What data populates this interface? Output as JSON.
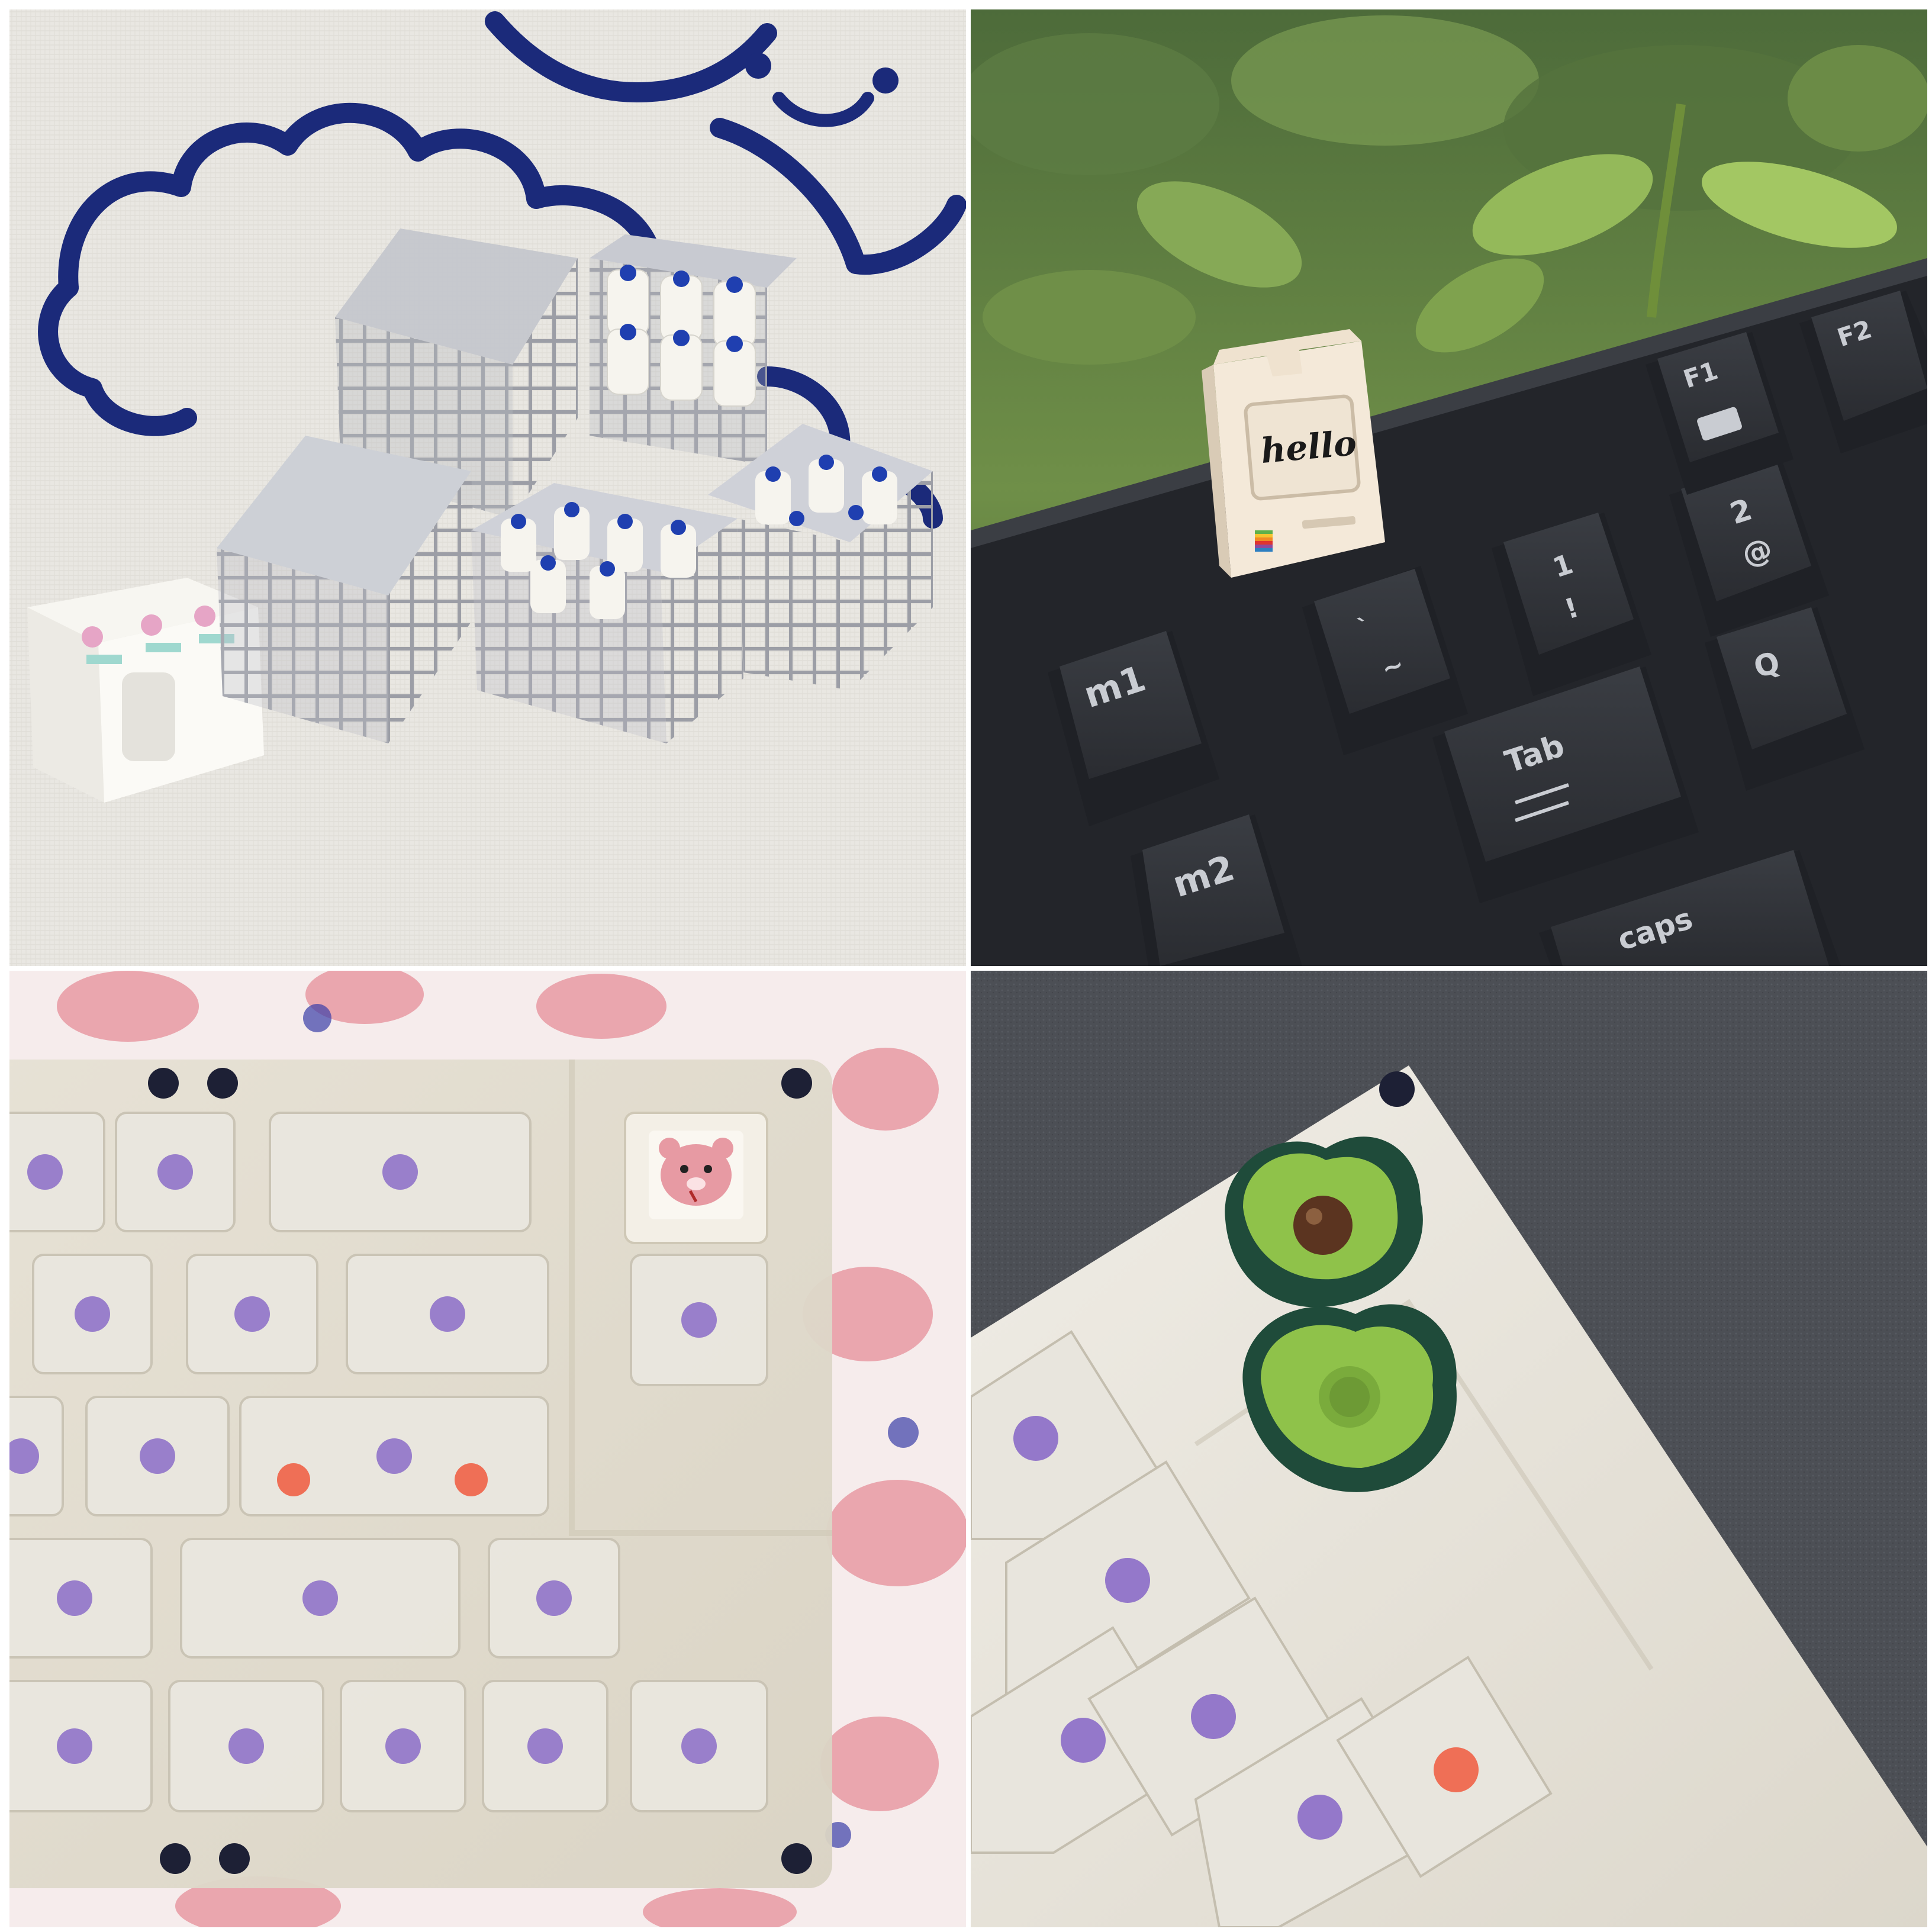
{
  "photos": [
    {
      "subject": "milk-crate-keycaps"
    },
    {
      "subject": "retro-computer-keycap"
    },
    {
      "subject": "clear-keyboard-bear-keycap"
    },
    {
      "subject": "avocado-keycaps"
    }
  ],
  "keyboard_legends": {
    "m1": "m1",
    "m2": "m2",
    "f1": "F1",
    "f2": "F2",
    "tab": "Tab",
    "q": "Q",
    "one": "1",
    "exclam": "!",
    "two": "2",
    "at": "@",
    "grave": "`",
    "tilde": "~",
    "caps": "caps"
  },
  "keycap_text": {
    "hello": "hello"
  },
  "colors": {
    "navy_print": "#1b2a7a",
    "keyboard_black": "#2b2e33",
    "keycap_cream": "#f1e6d6",
    "avocado_green": "#8fc24a",
    "avocado_skin": "#1f4b3a",
    "switch_purple": "#8b6cc8",
    "bear_pink": "#e79aa3"
  }
}
